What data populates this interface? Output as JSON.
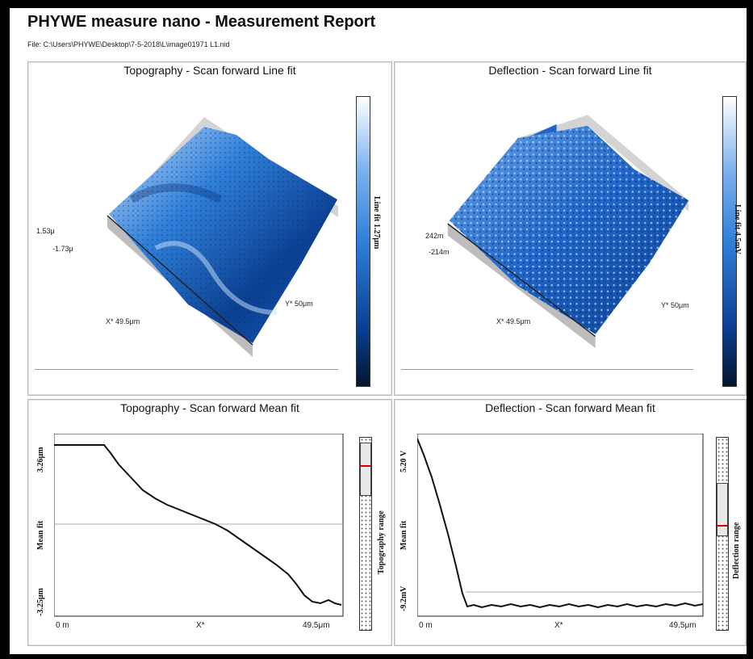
{
  "report": {
    "title": "PHYWE measure nano - Measurement Report",
    "file": "File: C:\\Users\\PHYWE\\Desktop\\7-5-2018\\L\\image01971 L1.nid"
  },
  "panels": {
    "topo3d": {
      "title": "Topography - Scan forward   Line fit",
      "z_max": "1.53μ",
      "z_min": "-1.73μ",
      "x_label": "X* 49.5μm",
      "y_label": "Y* 50μm",
      "colorbar_label": "Line fit 1.27μm"
    },
    "defl3d": {
      "title": "Deflection - Scan forward   Line fit",
      "z_max": "242m",
      "z_min": "-214m",
      "x_label": "X* 49.5μm",
      "y_label": "Y* 50μm",
      "colorbar_label": "Line fit 4.5mV"
    },
    "topo_profile": {
      "title": "Topography - Scan forward   Mean fit",
      "ylabel": "Mean fit",
      "range_label": "Topography range",
      "ytick_top": "3.26μm",
      "ytick_bottom": "-3.25μm",
      "xtick_left": "0 m",
      "xtick_mid": "X*",
      "xtick_right": "49.5μm"
    },
    "defl_profile": {
      "title": "Deflection - Scan forward   Mean fit",
      "ylabel": "Mean fit",
      "range_label": "Deflection range",
      "ytick_top": "5.20 V",
      "ytick_bottom": "-9.2mV",
      "xtick_left": "0 m",
      "xtick_mid": "X*",
      "xtick_right": "49.5μm"
    }
  },
  "colors": {
    "surface_dark": "#0b3f91",
    "surface_mid": "#2f7fd9",
    "surface_light": "#cfe3fb",
    "trace": "#111111",
    "meanline": "#aaaaaa",
    "range_marker": "#cc0000"
  }
}
